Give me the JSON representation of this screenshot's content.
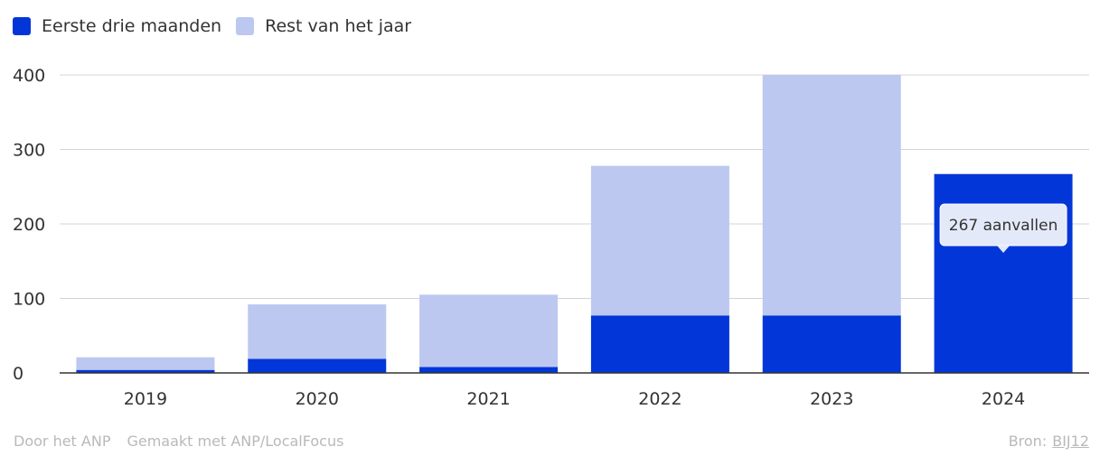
{
  "legend": [
    {
      "label": "Eerste drie maanden",
      "color": "#0336d8"
    },
    {
      "label": "Rest van het jaar",
      "color": "#bcc8f0"
    }
  ],
  "chart_data": {
    "type": "bar",
    "stacked": true,
    "categories": [
      "2019",
      "2020",
      "2021",
      "2022",
      "2023",
      "2024"
    ],
    "series": [
      {
        "name": "Eerste drie maanden",
        "color": "#0336d8",
        "values": [
          4,
          19,
          8,
          77,
          77,
          267
        ]
      },
      {
        "name": "Rest van het jaar",
        "color": "#bcc8f0",
        "values": [
          17,
          73,
          97,
          201,
          323,
          0
        ]
      }
    ],
    "ylim": [
      0,
      400
    ],
    "yticks": [
      0,
      100,
      200,
      300,
      400
    ],
    "grid": true,
    "legend_position": "top-left",
    "tooltip": {
      "category": "2024",
      "text": "267 aanvallen"
    }
  },
  "footer": {
    "author": "Door het ANP",
    "made_with": "Gemaakt met ANP/LocalFocus",
    "source_label": "Bron:",
    "source_link": "BIJ12"
  }
}
